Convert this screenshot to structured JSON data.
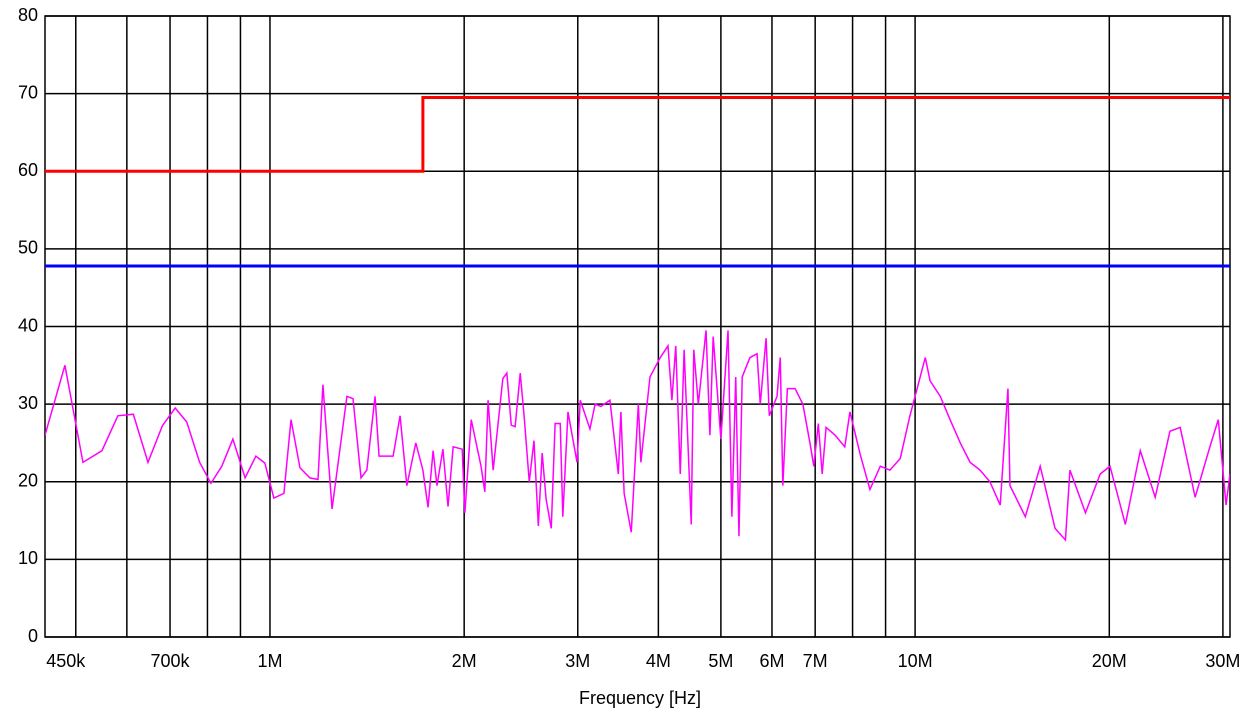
{
  "chart_data": {
    "type": "line",
    "x_label": "Frequency [Hz]",
    "log_x": true,
    "grid": true,
    "xlim": [
      448000,
      30770000
    ],
    "ylim": [
      0,
      80
    ],
    "yticks": [
      0,
      10,
      20,
      30,
      40,
      50,
      60,
      70,
      80
    ],
    "xticks": [
      {
        "value": 450000,
        "label": "450k"
      },
      {
        "value": 700000,
        "label": "700k"
      },
      {
        "value": 1000000,
        "label": "1M"
      },
      {
        "value": 2000000,
        "label": "2M"
      },
      {
        "value": 3000000,
        "label": "3M"
      },
      {
        "value": 4000000,
        "label": "4M"
      },
      {
        "value": 5000000,
        "label": "5M"
      },
      {
        "value": 6000000,
        "label": "6M"
      },
      {
        "value": 7000000,
        "label": "7M"
      },
      {
        "value": 10000000,
        "label": "10M"
      },
      {
        "value": 20000000,
        "label": "20M"
      },
      {
        "value": 30000000,
        "label": "30M"
      }
    ],
    "xgrid": [
      500000,
      600000,
      700000,
      800000,
      900000,
      1000000,
      2000000,
      3000000,
      4000000,
      5000000,
      6000000,
      7000000,
      8000000,
      9000000,
      10000000,
      20000000,
      30000000
    ],
    "series": [
      {
        "color": "#ff0000",
        "width": 3,
        "x": [
          448000,
          1726000,
          1726000,
          30770000
        ],
        "values": [
          60,
          60,
          69.5,
          69.5
        ]
      },
      {
        "color": "#0000ff",
        "width": 3,
        "x": [
          448000,
          30770000
        ],
        "values": [
          47.8,
          47.8
        ]
      },
      {
        "color": "#ff00ff",
        "width": 1.5,
        "x": [
          448000,
          481000,
          513000,
          549000,
          581000,
          614000,
          647000,
          681000,
          713000,
          743000,
          778000,
          810000,
          842000,
          876000,
          915000,
          951000,
          982000,
          1014000,
          1051000,
          1078000,
          1113000,
          1153000,
          1187000,
          1208000,
          1248000,
          1316000,
          1345000,
          1384000,
          1413000,
          1455000,
          1476000,
          1552000,
          1591000,
          1630000,
          1683000,
          1726000,
          1758000,
          1790000,
          1815000,
          1854000,
          1888000,
          1923000,
          1986000,
          2005000,
          2051000,
          2124000,
          2153000,
          2178000,
          2218000,
          2296000,
          2329000,
          2366000,
          2399000,
          2443000,
          2477000,
          2523000,
          2566000,
          2606000,
          2642000,
          2679000,
          2729000,
          2767000,
          2818000,
          2844000,
          2897000,
          2992000,
          3027000,
          3133000,
          3192000,
          3258000,
          3365000,
          3467000,
          3499000,
          3540000,
          3631000,
          3724000,
          3758000,
          3882000,
          4027000,
          4140000,
          4198000,
          4256000,
          4325000,
          4385000,
          4498000,
          4539000,
          4613000,
          4742000,
          4808000,
          4864000,
          5000000,
          5129000,
          5200000,
          5272000,
          5333000,
          5395000,
          5546000,
          5689000,
          5754000,
          5875000,
          5943000,
          6109000,
          6180000,
          6237000,
          6339000,
          6516000,
          6699000,
          6871000,
          6966000,
          7079000,
          7178000,
          7278000,
          7516000,
          7780000,
          7925000,
          8222000,
          8511000,
          8831000,
          9141000,
          9484000,
          9817000,
          10000000,
          10370000,
          10550000,
          10940000,
          11330000,
          11750000,
          12170000,
          12610000,
          13060000,
          13550000,
          13930000,
          14030000,
          14820000,
          15630000,
          16480000,
          17100000,
          17380000,
          18370000,
          19360000,
          20050000,
          21180000,
          22340000,
          23560000,
          24830000,
          25760000,
          27170000,
          28640000,
          29510000,
          30340000,
          30770000
        ],
        "values": [
          26,
          35,
          22.5,
          24,
          28.5,
          28.7,
          22.5,
          27.2,
          29.5,
          27.7,
          22.5,
          19.8,
          22,
          25.5,
          20.5,
          23.3,
          22.4,
          17.9,
          18.5,
          28,
          21.8,
          20.5,
          20.3,
          32.5,
          16.5,
          31,
          30.7,
          20.5,
          21.5,
          31,
          23.3,
          23.3,
          28.5,
          19.5,
          25,
          21.5,
          16.7,
          24,
          19.5,
          24.2,
          16.8,
          24.5,
          24.2,
          16,
          28,
          22,
          18.7,
          30.5,
          21.5,
          33.3,
          34,
          27.3,
          27.1,
          34,
          28.5,
          20,
          25.3,
          14.3,
          23.7,
          17.8,
          14,
          27.5,
          27.5,
          15.5,
          29,
          22.5,
          30.5,
          26.8,
          30,
          29.7,
          30.5,
          21,
          29,
          18.5,
          13.5,
          30,
          22.5,
          33.5,
          36,
          37.5,
          30.5,
          37.5,
          21,
          37,
          14.5,
          37,
          30,
          39.5,
          26,
          38.7,
          25.5,
          39.5,
          15.5,
          33.5,
          13,
          33.5,
          36,
          36.5,
          30,
          38.5,
          28.5,
          31,
          36,
          19.5,
          32,
          32,
          30,
          25,
          22,
          27.5,
          21,
          27,
          26,
          24.5,
          29,
          23.5,
          19,
          22,
          21.5,
          23,
          28.5,
          31,
          36,
          33,
          31,
          28,
          25,
          22.5,
          21.5,
          20,
          17,
          32,
          19.5,
          15.5,
          22,
          14,
          12.5,
          21.5,
          16,
          21,
          22,
          14.5,
          24,
          18,
          26.5,
          27,
          18,
          24.5,
          28,
          17,
          21
        ]
      }
    ]
  }
}
